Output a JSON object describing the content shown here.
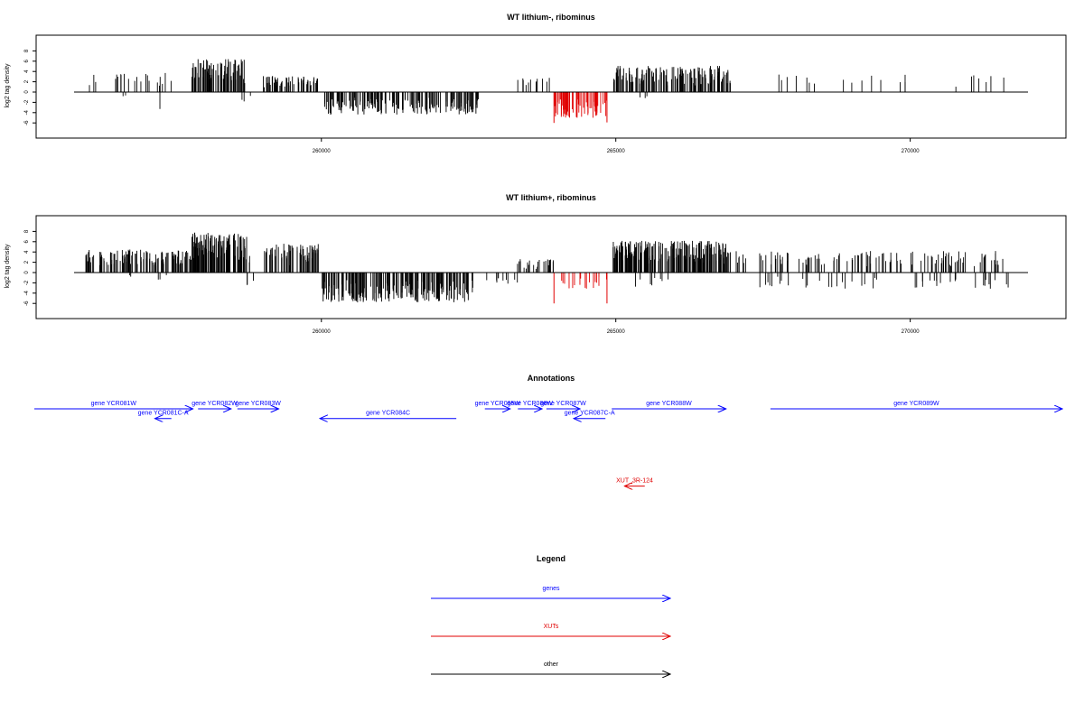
{
  "chart_data": [
    {
      "type": "bar",
      "title": "WT lithium-, ribominus",
      "ylabel": "log2 tag density",
      "ylim": [
        -6,
        8
      ],
      "yticks": [
        "-6",
        "-4",
        "-2",
        "0",
        "2",
        "4",
        "6",
        "8"
      ],
      "xlim": [
        255800,
        272000
      ],
      "xticks": [
        "260000",
        "265000",
        "270000"
      ],
      "colors": {
        "default": "#000000",
        "highlight": "#e00000"
      },
      "segments": [
        {
          "from": 256000,
          "to": 257600,
          "sign": 1,
          "max": 3.8,
          "density": 22,
          "seed": 11
        },
        {
          "from": 256600,
          "to": 256700,
          "sign": -1,
          "max": 1.7,
          "density": 2,
          "seed": 12
        },
        {
          "from": 257200,
          "to": 257300,
          "sign": -1,
          "max": 3.5,
          "density": 1,
          "seed": 13
        },
        {
          "from": 257800,
          "to": 258700,
          "sign": 1,
          "max": 6.4,
          "density": 80,
          "seed": 14
        },
        {
          "from": 258650,
          "to": 258800,
          "sign": -1,
          "max": 2.6,
          "density": 3,
          "seed": 15
        },
        {
          "from": 259000,
          "to": 259950,
          "sign": 1,
          "max": 3.2,
          "density": 60,
          "seed": 16
        },
        {
          "from": 260050,
          "to": 262700,
          "sign": -1,
          "max": 4.4,
          "density": 170,
          "seed": 17
        },
        {
          "from": 263300,
          "to": 263900,
          "sign": 1,
          "max": 2.8,
          "density": 12,
          "seed": 18
        },
        {
          "from": 264950,
          "to": 266950,
          "sign": 1,
          "max": 5.1,
          "density": 140,
          "seed": 19
        },
        {
          "from": 265400,
          "to": 265700,
          "sign": -1,
          "max": 1.2,
          "density": 3,
          "seed": 20
        },
        {
          "from": 267100,
          "to": 271600,
          "sign": 1,
          "max": 3.4,
          "density": 22,
          "seed": 21
        }
      ],
      "highlight": [
        {
          "from": 263950,
          "to": 264850,
          "sign": -1,
          "max": 5.0,
          "density": 70,
          "seed": 22,
          "edge_left": 6.0,
          "edge_right": 5.9
        }
      ]
    },
    {
      "type": "bar",
      "title": "WT lithium+, ribominus",
      "ylabel": "log2 tag density",
      "ylim": [
        -6,
        8
      ],
      "yticks": [
        "-6",
        "-4",
        "-2",
        "0",
        "2",
        "4",
        "6",
        "8"
      ],
      "xlim": [
        255800,
        272000
      ],
      "xticks": [
        "260000",
        "265000",
        "270000"
      ],
      "colors": {
        "default": "#000000",
        "highlight": "#e00000"
      },
      "segments": [
        {
          "from": 256000,
          "to": 257800,
          "sign": 1,
          "max": 4.5,
          "density": 120,
          "seed": 31
        },
        {
          "from": 256700,
          "to": 256800,
          "sign": -1,
          "max": 2.0,
          "density": 2,
          "seed": 32
        },
        {
          "from": 257200,
          "to": 257400,
          "sign": -1,
          "max": 1.5,
          "density": 3,
          "seed": 33
        },
        {
          "from": 257800,
          "to": 258800,
          "sign": 1,
          "max": 7.8,
          "density": 110,
          "seed": 34
        },
        {
          "from": 258700,
          "to": 258850,
          "sign": -1,
          "max": 2.5,
          "density": 3,
          "seed": 35
        },
        {
          "from": 259000,
          "to": 259950,
          "sign": 1,
          "max": 5.6,
          "density": 70,
          "seed": 36
        },
        {
          "from": 259950,
          "to": 262600,
          "sign": -1,
          "max": 5.8,
          "density": 200,
          "seed": 37
        },
        {
          "from": 262600,
          "to": 263400,
          "sign": -1,
          "max": 2.2,
          "density": 10,
          "seed": 38
        },
        {
          "from": 263300,
          "to": 263950,
          "sign": 1,
          "max": 2.6,
          "density": 25,
          "seed": 39
        },
        {
          "from": 264950,
          "to": 266900,
          "sign": 1,
          "max": 6.2,
          "density": 210,
          "seed": 40
        },
        {
          "from": 265200,
          "to": 265900,
          "sign": -1,
          "max": 2.9,
          "density": 8,
          "seed": 41
        },
        {
          "from": 266900,
          "to": 271700,
          "sign": 1,
          "max": 4.2,
          "density": 120,
          "seed": 42
        },
        {
          "from": 267400,
          "to": 271700,
          "sign": -1,
          "max": 3.2,
          "density": 45,
          "seed": 43
        }
      ],
      "highlight": [
        {
          "from": 263950,
          "to": 264850,
          "sign": -1,
          "max": 3.2,
          "density": 18,
          "seed": 44,
          "edge_left": 6.0,
          "edge_right": 6.0
        }
      ]
    }
  ],
  "annotations": {
    "title": "Annotations",
    "xlim": [
      255800,
      272000
    ],
    "features": [
      {
        "label": "gene YCR081W",
        "from": 255800,
        "to": 258300,
        "dir": 1,
        "row": 0,
        "kind": "gene"
      },
      {
        "label": "gene YCR081C-A",
        "from": 257700,
        "to": 257960,
        "dir": -1,
        "row": 1,
        "kind": "gene"
      },
      {
        "label": "gene YCR082W",
        "from": 258380,
        "to": 258900,
        "dir": 1,
        "row": 0,
        "kind": "gene"
      },
      {
        "label": "gene YCR083W",
        "from": 259000,
        "to": 259650,
        "dir": 1,
        "row": 0,
        "kind": "gene"
      },
      {
        "label": "gene YCR084C",
        "from": 260300,
        "to": 262450,
        "dir": -1,
        "row": 1,
        "kind": "gene"
      },
      {
        "label": "gene YCR085W",
        "from": 262900,
        "to": 263300,
        "dir": 1,
        "row": 0,
        "kind": "gene"
      },
      {
        "label": "gene YCR086W",
        "from": 263420,
        "to": 263800,
        "dir": 1,
        "row": 0,
        "kind": "gene"
      },
      {
        "label": "gene YCR087W",
        "from": 263870,
        "to": 264400,
        "dir": 1,
        "row": 0,
        "kind": "gene"
      },
      {
        "label": "gene YCR087C-A",
        "from": 264300,
        "to": 264800,
        "dir": -1,
        "row": 1,
        "kind": "gene"
      },
      {
        "label": "gene YCR088W",
        "from": 264900,
        "to": 266700,
        "dir": 1,
        "row": 0,
        "kind": "gene"
      },
      {
        "label": "gene YCR089W",
        "from": 267400,
        "to": 272000,
        "dir": 1,
        "row": 0,
        "kind": "gene"
      },
      {
        "label": "XUT_3R-124",
        "from": 265100,
        "to": 265420,
        "dir": -1,
        "row": 8,
        "kind": "xut"
      }
    ]
  },
  "legend": {
    "title": "Legend",
    "items": [
      {
        "label": "genes",
        "color": "#0000ff"
      },
      {
        "label": "XUTs",
        "color": "#e00000"
      },
      {
        "label": "other",
        "color": "#000000"
      }
    ]
  }
}
